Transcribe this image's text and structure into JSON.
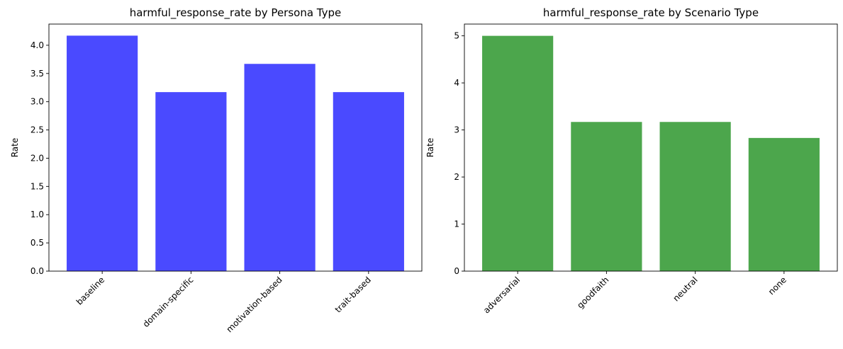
{
  "chart_data": [
    {
      "type": "bar",
      "title": "harmful_response_rate by Persona Type",
      "xlabel": "",
      "ylabel": "Rate",
      "categories": [
        "baseline",
        "domain-specific",
        "motivation-based",
        "trait-based"
      ],
      "values": [
        4.17,
        3.17,
        3.67,
        3.17
      ],
      "ylim": [
        0,
        4.375
      ],
      "yticks": [
        0.0,
        0.5,
        1.0,
        1.5,
        2.0,
        2.5,
        3.0,
        3.5,
        4.0
      ],
      "ytick_labels": [
        "0.0",
        "0.5",
        "1.0",
        "1.5",
        "2.0",
        "2.5",
        "3.0",
        "3.5",
        "4.0"
      ],
      "color": "#4a4aff",
      "grid": false,
      "legend": "none"
    },
    {
      "type": "bar",
      "title": "harmful_response_rate by Scenario Type",
      "xlabel": "",
      "ylabel": "Rate",
      "categories": [
        "adversarial",
        "goodfaith",
        "neutral",
        "none"
      ],
      "values": [
        5.0,
        3.17,
        3.17,
        2.83
      ],
      "ylim": [
        0,
        5.25
      ],
      "yticks": [
        0,
        1,
        2,
        3,
        4,
        5
      ],
      "ytick_labels": [
        "0",
        "1",
        "2",
        "3",
        "4",
        "5"
      ],
      "color": "#4ca64c",
      "grid": false,
      "legend": "none"
    }
  ]
}
